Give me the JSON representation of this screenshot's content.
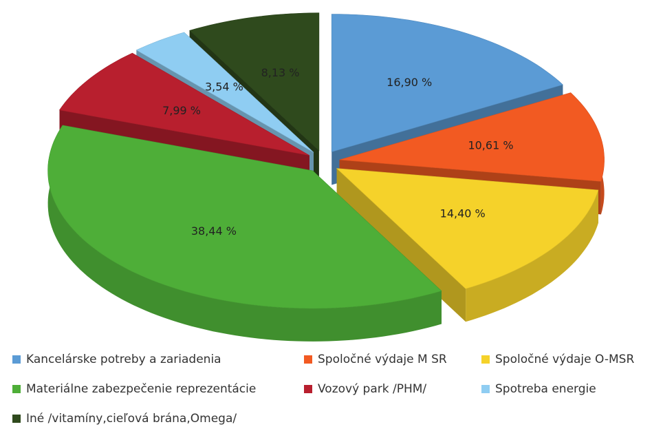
{
  "chart_data": {
    "type": "pie",
    "categories": [
      "Kancelárske potreby a zariadenia",
      "Spoločné výdaje M SR",
      "Spoločné výdaje O-MSR",
      "Materiálne zabezpečenie reprezentácie",
      "Vozový park /PHM/",
      "Spotreba energie",
      "Iné /vitamíny,cieľová brána,Omega/"
    ],
    "values": [
      16.9,
      10.61,
      14.4,
      38.44,
      7.99,
      3.54,
      8.13
    ],
    "value_labels": [
      "16,90 %",
      "10,61 %",
      "14,40 %",
      "38,44 %",
      "7,99 %",
      "3,54 %",
      "8,13 %"
    ],
    "colors": [
      "#5b9bd5",
      "#f25a22",
      "#f5d22a",
      "#4eae38",
      "#b81f2e",
      "#8fcdf2",
      "#2f4a1d"
    ],
    "legend": "bottom"
  }
}
